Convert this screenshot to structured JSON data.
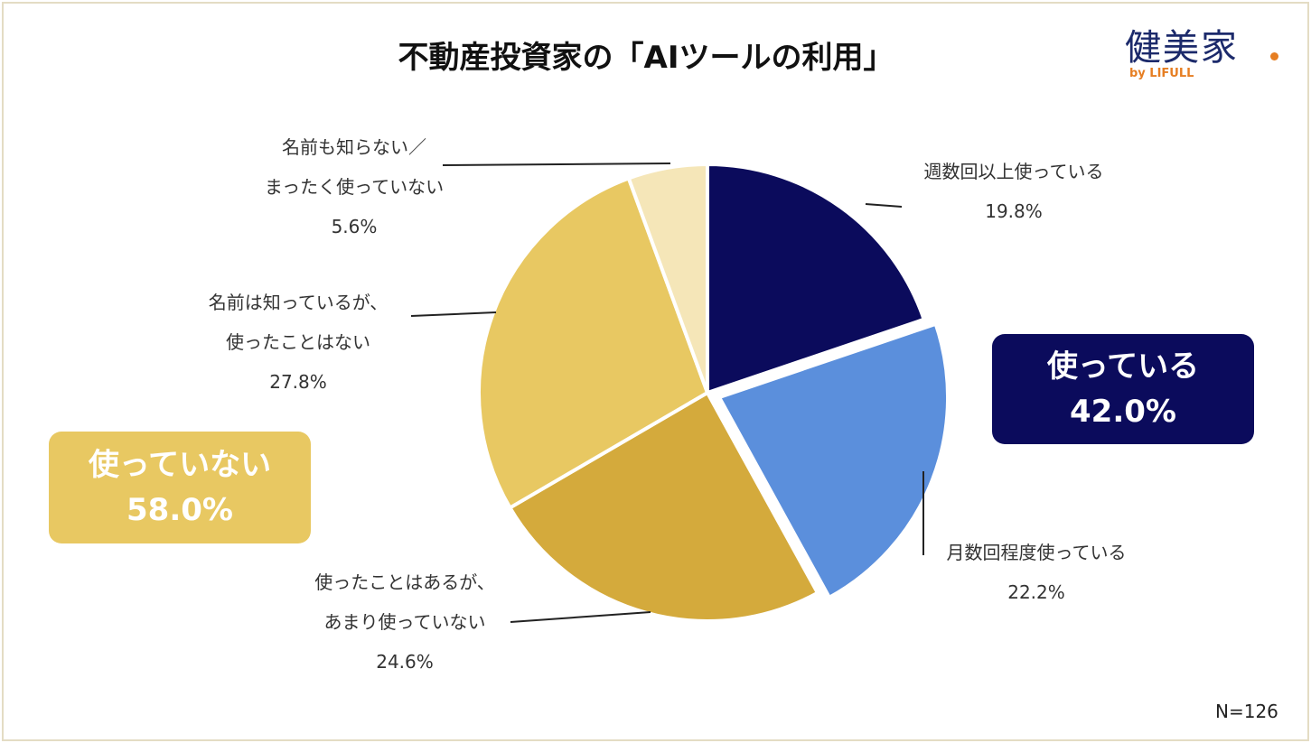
{
  "chart_data": {
    "type": "pie",
    "title": "不動産投資家の「AIツールの利用」",
    "categories": [
      "週数回以上使っている",
      "月数回程度使っている",
      "使ったことはあるが、\nあまり使っていない",
      "名前は知っているが、\n使ったことはない",
      "名前も知らない／\nまったく使っていない"
    ],
    "values": [
      19.8,
      22.2,
      24.6,
      27.8,
      5.6
    ],
    "value_labels": [
      "19.8%",
      "22.2%",
      "24.6%",
      "27.8%",
      "5.6%"
    ],
    "colors": [
      "#0b0b5c",
      "#5b8fdc",
      "#d4aa3c",
      "#e8c862",
      "#f5e6b8"
    ],
    "annotations": [
      {
        "text": "使っている",
        "value": 42.0,
        "value_label": "42.0%",
        "color": "#0b0b5c"
      },
      {
        "text": "使っていない",
        "value": 58.0,
        "value_label": "58.0%",
        "color": "#e8c862"
      }
    ],
    "note": "N=126"
  },
  "logo": {
    "name": "健美家",
    "sub": "by LIFULL"
  }
}
